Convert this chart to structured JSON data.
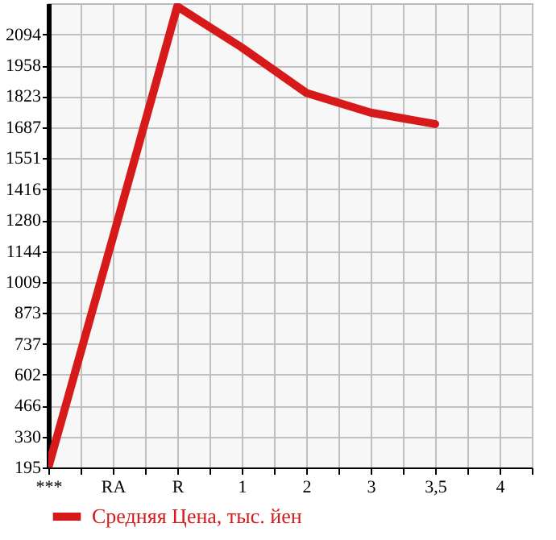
{
  "chart_data": {
    "type": "line",
    "categories": [
      "***",
      "RA",
      "R",
      "1",
      "2",
      "3",
      "3,5",
      "4"
    ],
    "series": [
      {
        "name": "Средняя Цена, тыс. йен",
        "color": "#d61a1a",
        "values": [
          195,
          1202,
          2217,
          2037,
          1838,
          1751,
          1701,
          null
        ]
      }
    ],
    "ylim": [
      195,
      2231
    ],
    "yticks": [
      195,
      330,
      466,
      602,
      737,
      873,
      1009,
      1144,
      1280,
      1416,
      1551,
      1687,
      1823,
      1958,
      2094
    ],
    "grid": true,
    "legend": "bottom"
  }
}
